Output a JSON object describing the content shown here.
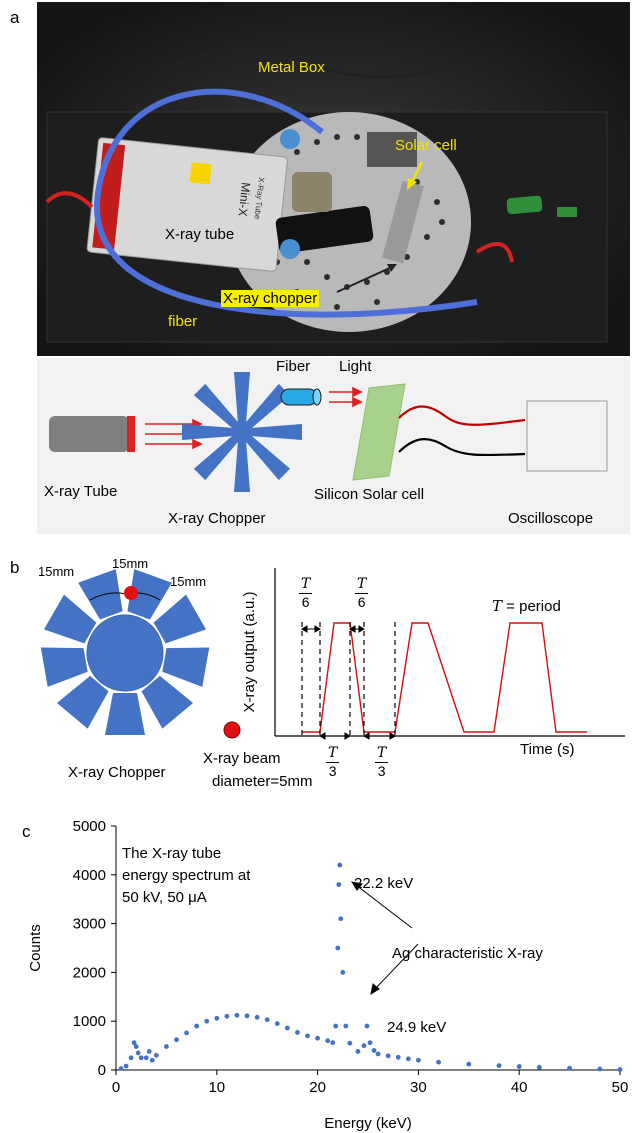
{
  "panel_a": {
    "letter": "a",
    "photo_labels": {
      "metal_box": "Metal Box",
      "solar_cell": "Solar cell",
      "xray_tube": "X-ray tube",
      "xray_chopper": "X-ray chopper",
      "fiber": "fiber"
    },
    "tube_printed_text": {
      "brand": "Mini-X",
      "sub": "X-Ray Tube"
    },
    "schematic": {
      "xray_tube": "X-ray Tube",
      "xray_chopper": "X-ray Chopper",
      "fiber": "Fiber",
      "light": "Light",
      "solar_cell": "Silicon Solar cell",
      "oscilloscope": "Oscilloscope"
    }
  },
  "panel_b": {
    "letter": "b",
    "chopper_dims": {
      "left": "15mm",
      "middle": "15mm",
      "right": "15mm"
    },
    "chopper_label": "X-ray Chopper",
    "beam_label_1": "X-ray beam",
    "beam_label_2": "diameter=5mm",
    "plot": {
      "ylabel": "X-ray output (a.u.)",
      "xlabel": "Time (s)",
      "period_var": "T",
      "period_text": " = period",
      "frac_T6_num": "T",
      "frac_T6_den": "6",
      "frac_T3_num": "T",
      "frac_T3_den": "3"
    }
  },
  "panel_c": {
    "letter": "c",
    "annotation_lines": [
      "The X-ray tube",
      "energy spectrum at",
      "50 kV, 50 μA"
    ],
    "peak1_label": "22.2 keV",
    "peak2_label": "24.9 keV",
    "char_label": "Ag characteristic X-ray"
  },
  "chart_data": {
    "type": "scatter",
    "title": "",
    "xlabel": "Energy (keV)",
    "ylabel": "Counts",
    "xlim": [
      0,
      50
    ],
    "ylim": [
      0,
      5000
    ],
    "xticks": [
      0,
      10,
      20,
      30,
      40,
      50
    ],
    "yticks": [
      0,
      1000,
      2000,
      3000,
      4000,
      5000
    ],
    "grid": false,
    "color": "#4472c4",
    "series": [
      {
        "x": [
          0.5,
          1.0,
          1.5,
          1.8,
          2.0,
          2.2,
          2.5,
          3.0,
          3.3,
          3.6,
          4.0,
          5,
          6,
          7,
          8,
          9,
          10,
          11,
          12,
          13,
          14,
          15,
          16,
          17,
          18,
          19,
          20,
          21,
          21.5,
          21.8,
          22.0,
          22.1,
          22.2,
          22.3,
          22.5,
          22.8,
          23.2,
          24,
          24.6,
          24.9,
          25.2,
          25.6,
          26,
          27,
          28,
          29,
          30,
          32,
          35,
          38,
          40,
          42,
          45,
          48,
          50
        ],
        "y": [
          30,
          80,
          250,
          560,
          480,
          350,
          250,
          250,
          380,
          200,
          300,
          480,
          620,
          760,
          900,
          1000,
          1060,
          1100,
          1120,
          1110,
          1080,
          1030,
          950,
          860,
          770,
          700,
          650,
          600,
          560,
          900,
          2500,
          3800,
          4200,
          3100,
          2000,
          900,
          550,
          380,
          500,
          900,
          560,
          400,
          330,
          290,
          260,
          230,
          200,
          160,
          120,
          90,
          70,
          55,
          35,
          20,
          10
        ]
      }
    ]
  }
}
